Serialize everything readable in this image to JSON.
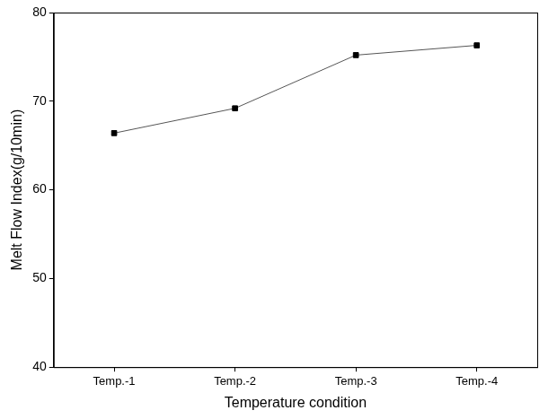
{
  "chart_data": {
    "type": "line",
    "x_label": "Temperature condition",
    "y_label": "Melt Flow Index(g/10min)",
    "categories": [
      "Temp.-1",
      "Temp.-2",
      "Temp.-3",
      "Temp.-4"
    ],
    "values": [
      66.4,
      69.2,
      75.2,
      76.3
    ],
    "color": "#000000",
    "marker": "square",
    "line_style": "solid",
    "ylim": [
      40,
      80
    ],
    "yticks": [
      40,
      50,
      60,
      70,
      80
    ],
    "grid": false
  }
}
